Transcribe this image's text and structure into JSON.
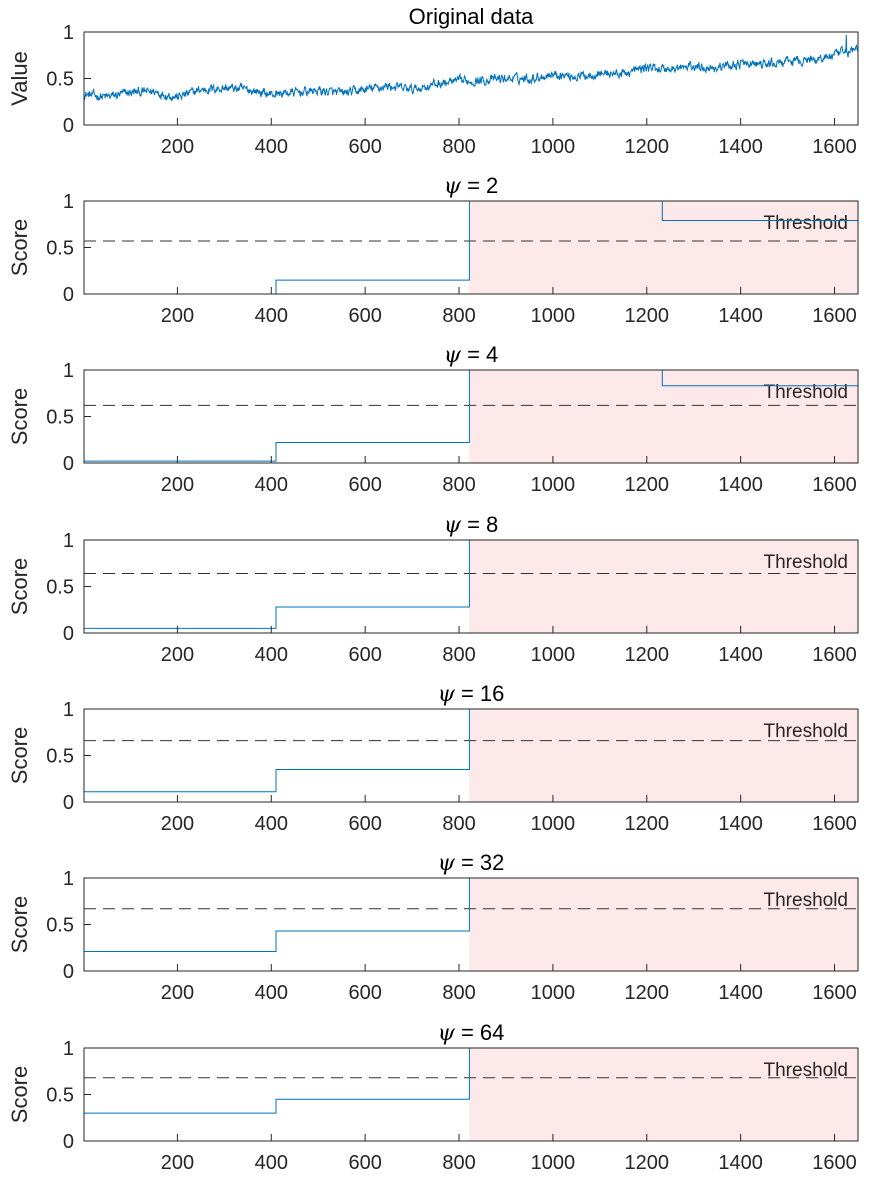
{
  "chart_data": [
    {
      "type": "line",
      "title": "Original data",
      "ylabel": "Value",
      "xlabel": "",
      "xlim": [
        1,
        1650
      ],
      "ylim": [
        0,
        1
      ],
      "xticks": [
        200,
        400,
        600,
        800,
        1000,
        1200,
        1400,
        1600
      ],
      "yticks": [
        0,
        0.5,
        1
      ],
      "xtick_labels": [
        "200",
        "400",
        "600",
        "800",
        "1000",
        "1200",
        "1400",
        "1600"
      ],
      "ytick_labels": [
        "0",
        "0.5",
        "1"
      ],
      "series": [
        {
          "name": "Value",
          "color": "#0072BD",
          "trend_x": [
            1,
            50,
            100,
            150,
            200,
            250,
            300,
            350,
            400,
            450,
            500,
            550,
            600,
            650,
            700,
            750,
            800,
            850,
            900,
            950,
            1000,
            1050,
            1100,
            1150,
            1200,
            1250,
            1300,
            1350,
            1400,
            1450,
            1500,
            1550,
            1600,
            1650
          ],
          "trend_y": [
            0.33,
            0.3,
            0.35,
            0.36,
            0.3,
            0.38,
            0.4,
            0.38,
            0.33,
            0.35,
            0.37,
            0.34,
            0.38,
            0.42,
            0.38,
            0.44,
            0.47,
            0.48,
            0.5,
            0.5,
            0.55,
            0.52,
            0.56,
            0.55,
            0.62,
            0.6,
            0.63,
            0.62,
            0.66,
            0.65,
            0.68,
            0.7,
            0.75,
            0.82
          ],
          "noise_amplitude": 0.05,
          "peak": {
            "x": 1625,
            "y": 0.97
          }
        }
      ]
    },
    {
      "type": "line",
      "title_prefix": "ψ",
      "title_suffix": " = 2",
      "ylabel": "Score",
      "xlim": [
        1,
        1650
      ],
      "ylim": [
        0,
        1
      ],
      "xtick_labels": [
        "200",
        "400",
        "600",
        "800",
        "1000",
        "1200",
        "1400",
        "1600"
      ],
      "ytick_labels": [
        "0",
        "0.5",
        "1"
      ],
      "threshold": 0.57,
      "threshold_label": "Threshold",
      "highlight_range": [
        822,
        1650
      ],
      "step_x": [
        1,
        410,
        822,
        1233,
        1650
      ],
      "step_y": [
        0.0,
        0.15,
        1.0,
        0.79
      ]
    },
    {
      "type": "line",
      "title_prefix": "ψ",
      "title_suffix": " = 4",
      "ylabel": "Score",
      "xlim": [
        1,
        1650
      ],
      "ylim": [
        0,
        1
      ],
      "xtick_labels": [
        "200",
        "400",
        "600",
        "800",
        "1000",
        "1200",
        "1400",
        "1600"
      ],
      "ytick_labels": [
        "0",
        "0.5",
        "1"
      ],
      "threshold": 0.62,
      "threshold_label": "Threshold",
      "highlight_range": [
        822,
        1650
      ],
      "step_x": [
        1,
        410,
        822,
        1233,
        1650
      ],
      "step_y": [
        0.02,
        0.22,
        1.0,
        0.83
      ]
    },
    {
      "type": "line",
      "title_prefix": "ψ",
      "title_suffix": " = 8",
      "ylabel": "Score",
      "xlim": [
        1,
        1650
      ],
      "ylim": [
        0,
        1
      ],
      "xtick_labels": [
        "200",
        "400",
        "600",
        "800",
        "1000",
        "1200",
        "1400",
        "1600"
      ],
      "ytick_labels": [
        "0",
        "0.5",
        "1"
      ],
      "threshold": 0.64,
      "threshold_label": "Threshold",
      "highlight_range": [
        822,
        1650
      ],
      "step_x": [
        1,
        410,
        822,
        1650
      ],
      "step_y": [
        0.05,
        0.28,
        1.0
      ]
    },
    {
      "type": "line",
      "title_prefix": "ψ",
      "title_suffix": " = 16",
      "ylabel": "Score",
      "xlim": [
        1,
        1650
      ],
      "ylim": [
        0,
        1
      ],
      "xtick_labels": [
        "200",
        "400",
        "600",
        "800",
        "1000",
        "1200",
        "1400",
        "1600"
      ],
      "ytick_labels": [
        "0",
        "0.5",
        "1"
      ],
      "threshold": 0.66,
      "threshold_label": "Threshold",
      "highlight_range": [
        822,
        1650
      ],
      "step_x": [
        1,
        410,
        822,
        1650
      ],
      "step_y": [
        0.11,
        0.35,
        1.0
      ]
    },
    {
      "type": "line",
      "title_prefix": "ψ",
      "title_suffix": " = 32",
      "ylabel": "Score",
      "xlim": [
        1,
        1650
      ],
      "ylim": [
        0,
        1
      ],
      "xtick_labels": [
        "200",
        "400",
        "600",
        "800",
        "1000",
        "1200",
        "1400",
        "1600"
      ],
      "ytick_labels": [
        "0",
        "0.5",
        "1"
      ],
      "threshold": 0.67,
      "threshold_label": "Threshold",
      "highlight_range": [
        822,
        1650
      ],
      "step_x": [
        1,
        410,
        822,
        1650
      ],
      "step_y": [
        0.21,
        0.43,
        1.0
      ]
    },
    {
      "type": "line",
      "title_prefix": "ψ",
      "title_suffix": " = 64",
      "ylabel": "Score",
      "xlim": [
        1,
        1650
      ],
      "ylim": [
        0,
        1
      ],
      "xtick_labels": [
        "200",
        "400",
        "600",
        "800",
        "1000",
        "1200",
        "1400",
        "1600"
      ],
      "ytick_labels": [
        "0",
        "0.5",
        "1"
      ],
      "threshold": 0.68,
      "threshold_label": "Threshold",
      "highlight_range": [
        822,
        1650
      ],
      "step_x": [
        1,
        410,
        822,
        1650
      ],
      "step_y": [
        0.3,
        0.45,
        1.0
      ]
    }
  ],
  "colors": {
    "line": "#0072BD",
    "highlight": "#FDE8EA",
    "threshold": "#333333",
    "axis": "#262626"
  }
}
